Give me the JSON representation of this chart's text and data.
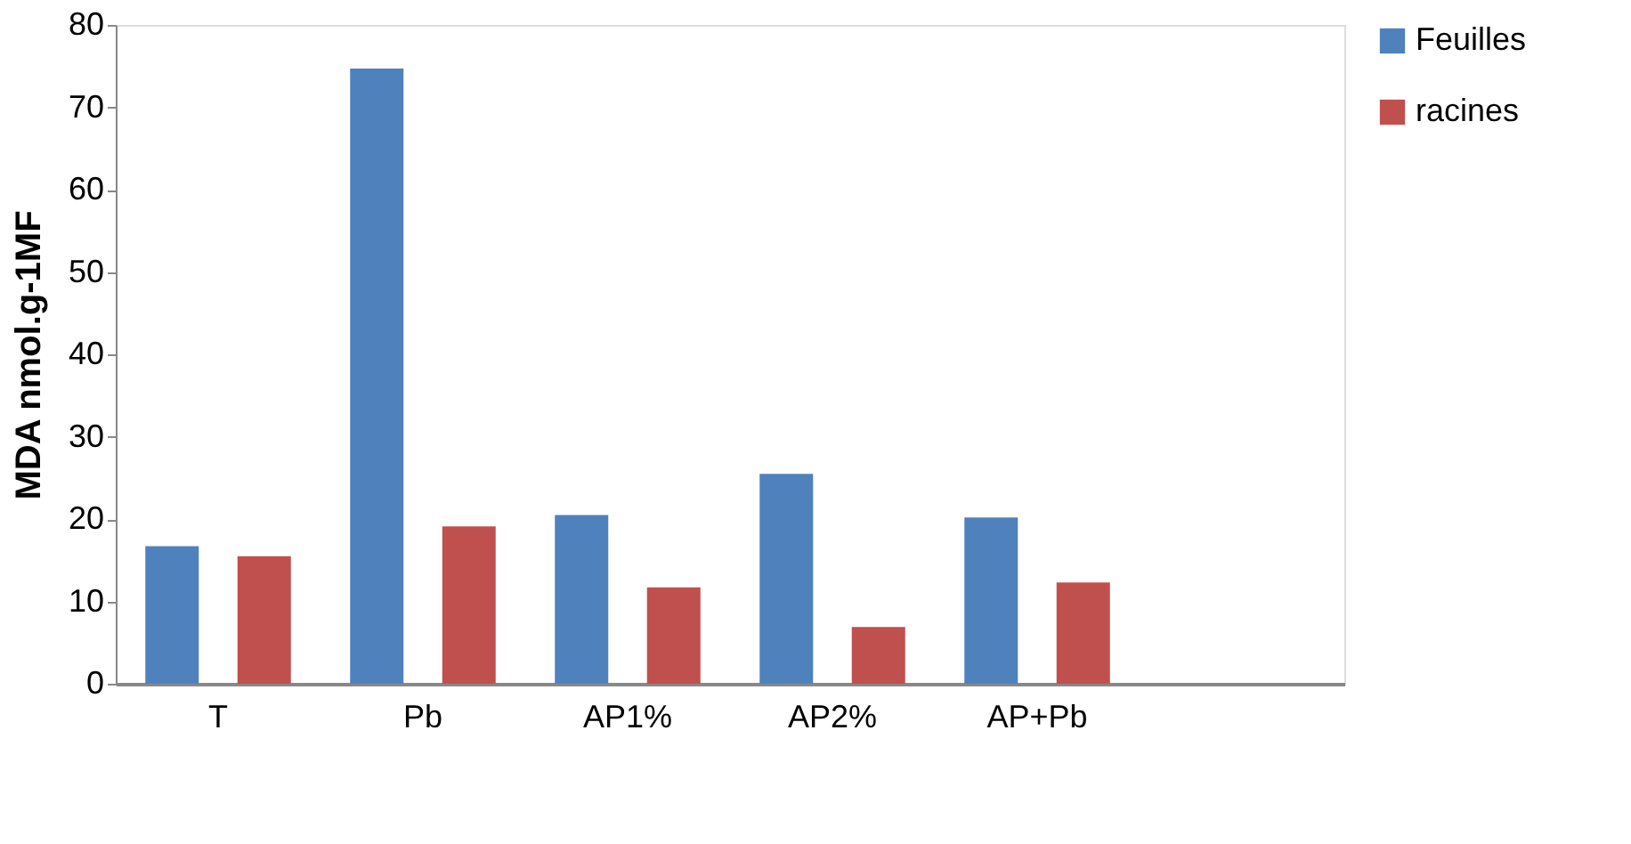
{
  "chart_data": {
    "type": "bar",
    "ylabel": "MDA nmol.g-1MF",
    "categories": [
      "T",
      "Pb",
      "AP1%",
      "AP2%",
      "AP+Pb",
      null
    ],
    "series": [
      {
        "name": "Feuilles",
        "color": "#4f81bd",
        "values": [
          16.7,
          74.7,
          20.5,
          25.5,
          20.2,
          null
        ]
      },
      {
        "name": "racines",
        "color": "#c0504d",
        "values": [
          15.5,
          19.1,
          11.7,
          6.9,
          12.3,
          null
        ]
      }
    ],
    "ylim": [
      0,
      80
    ],
    "yticks": [
      0,
      10,
      20,
      30,
      40,
      50,
      60,
      70,
      80
    ],
    "grid": false,
    "legend": "right"
  }
}
